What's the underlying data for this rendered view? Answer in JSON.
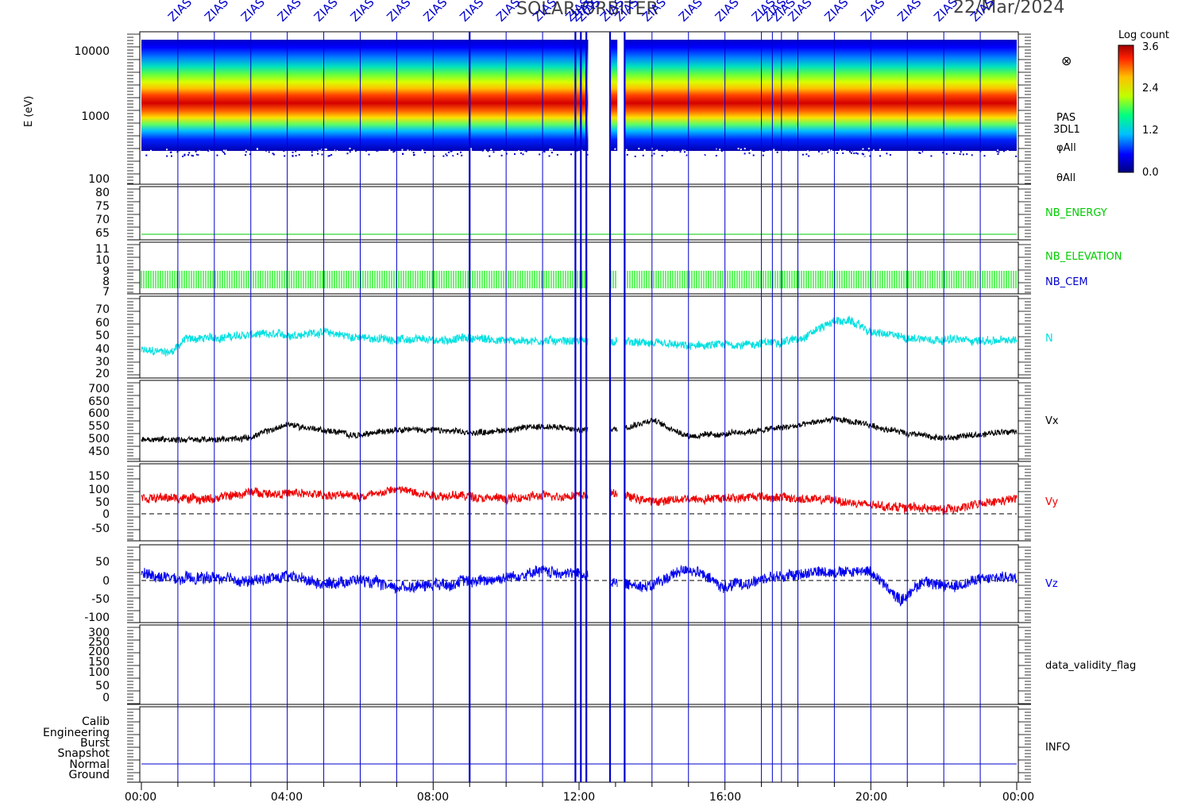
{
  "header": {
    "title": "SOLAR-ORBITER",
    "date": "22/Mar/2024"
  },
  "colorbar": {
    "title": "Log count",
    "ticks": [
      "3.6",
      "2.4",
      "1.2",
      "0.0"
    ],
    "colors": [
      "#000080",
      "#0000ff",
      "#00c0ff",
      "#00ff80",
      "#c0ff00",
      "#ffc000",
      "#ff2000",
      "#a00000"
    ]
  },
  "time_axis": {
    "ticks": [
      "00:00",
      "04:00",
      "08:00",
      "12:00",
      "16:00",
      "20:00",
      "00:00"
    ],
    "hours": [
      0,
      4,
      8,
      12,
      16,
      20,
      24
    ]
  },
  "event_markers": {
    "label": "ZIAS",
    "hours": [
      1.0,
      2.0,
      3.0,
      4.0,
      5.0,
      6.0,
      7.0,
      8.0,
      9.0,
      10.0,
      11.0,
      11.9,
      12.05,
      12.2,
      12.85,
      13.25,
      14.0,
      15.0,
      16.0,
      17.0,
      17.3,
      17.55,
      18.0,
      19.0,
      20.0,
      21.0,
      22.0,
      23.0
    ],
    "bold_hours": [
      9.0,
      11.95,
      12.15,
      12.85,
      13.2
    ],
    "color": "#0000cc"
  },
  "chart_data": [
    {
      "type": "heatmap",
      "name": "energy-spectrogram",
      "ylabel": "E (eV)",
      "yscale": "log",
      "ylim": [
        100,
        16000
      ],
      "yticks": [
        "10000",
        "1000",
        "100"
      ],
      "right_labels": [
        "PAS",
        "3DL1",
        "φAll",
        "θAll"
      ],
      "symbol": "⊗",
      "peak_energy_eV": 1500,
      "gap_hours": [
        [
          12.25,
          12.85
        ],
        [
          13.05,
          13.25
        ]
      ]
    },
    {
      "type": "line",
      "name": "NB_ENERGY",
      "right_label": "NB_ENERGY",
      "color": "#00cc00",
      "yticks": [
        "80",
        "75",
        "70",
        "65"
      ],
      "ylim": [
        60,
        82
      ],
      "constant_value": 63.5
    },
    {
      "type": "line",
      "name": "NB_ELEVATION",
      "right_labels": [
        {
          "text": "NB_ELEVATION",
          "color": "#00cc00"
        },
        {
          "text": "NB_CEM",
          "color": "#0000cc"
        }
      ],
      "color": "#00ee00",
      "yticks": [
        "11",
        "10",
        "9",
        "8",
        "7"
      ],
      "ylim": [
        6.8,
        11.5
      ],
      "range": [
        7.3,
        8.9
      ]
    },
    {
      "type": "line",
      "name": "N",
      "right_label": "N",
      "color": "#00e0e0",
      "yticks": [
        "70",
        "60",
        "50",
        "40",
        "30",
        "20"
      ],
      "ylim": [
        18,
        75
      ],
      "keypoints": [
        [
          0,
          37
        ],
        [
          0.8,
          36
        ],
        [
          1.2,
          45
        ],
        [
          2,
          46
        ],
        [
          3,
          48
        ],
        [
          4,
          48
        ],
        [
          5,
          50
        ],
        [
          6,
          46
        ],
        [
          7,
          45
        ],
        [
          8,
          44
        ],
        [
          9,
          46
        ],
        [
          10,
          44
        ],
        [
          11,
          44
        ],
        [
          12,
          44
        ],
        [
          13,
          43
        ],
        [
          14,
          42
        ],
        [
          15,
          40
        ],
        [
          16,
          41
        ],
        [
          17,
          42
        ],
        [
          18,
          45
        ],
        [
          19,
          58
        ],
        [
          19.5,
          57
        ],
        [
          20,
          50
        ],
        [
          21,
          46
        ],
        [
          22,
          45
        ],
        [
          23,
          44
        ],
        [
          24,
          44
        ]
      ],
      "noise": 5
    },
    {
      "type": "line",
      "name": "Vx",
      "right_label": "Vx",
      "color": "#000000",
      "yticks": [
        "700",
        "650",
        "600",
        "550",
        "500",
        "450"
      ],
      "ylim": [
        430,
        715
      ],
      "keypoints": [
        [
          0,
          510
        ],
        [
          2,
          505
        ],
        [
          3,
          515
        ],
        [
          4,
          560
        ],
        [
          5,
          540
        ],
        [
          6,
          520
        ],
        [
          7,
          545
        ],
        [
          8,
          540
        ],
        [
          9,
          530
        ],
        [
          10,
          540
        ],
        [
          11,
          555
        ],
        [
          12,
          540
        ],
        [
          13,
          545
        ],
        [
          14,
          575
        ],
        [
          15,
          520
        ],
        [
          16,
          525
        ],
        [
          17,
          540
        ],
        [
          18,
          555
        ],
        [
          19,
          580
        ],
        [
          20,
          555
        ],
        [
          21,
          530
        ],
        [
          22,
          510
        ],
        [
          23,
          525
        ],
        [
          24,
          540
        ]
      ],
      "noise": 18
    },
    {
      "type": "line",
      "name": "Vy",
      "right_label": "Vy",
      "color": "#ee0000",
      "yticks": [
        "150",
        "100",
        "50",
        "0",
        "-50"
      ],
      "ylim": [
        -95,
        190
      ],
      "zero_line": true,
      "keypoints": [
        [
          0,
          65
        ],
        [
          2,
          60
        ],
        [
          3,
          85
        ],
        [
          4,
          80
        ],
        [
          5,
          75
        ],
        [
          6,
          70
        ],
        [
          7,
          95
        ],
        [
          8,
          75
        ],
        [
          9,
          70
        ],
        [
          10,
          60
        ],
        [
          11,
          70
        ],
        [
          12,
          75
        ],
        [
          13,
          80
        ],
        [
          14,
          50
        ],
        [
          15,
          60
        ],
        [
          16,
          65
        ],
        [
          17,
          70
        ],
        [
          18,
          60
        ],
        [
          19,
          55
        ],
        [
          20,
          35
        ],
        [
          21,
          30
        ],
        [
          22,
          20
        ],
        [
          23,
          40
        ],
        [
          24,
          60
        ]
      ],
      "noise": 28
    },
    {
      "type": "line",
      "name": "Vz",
      "right_label": "Vz",
      "color": "#0000ee",
      "yticks": [
        "50",
        "0",
        "-50",
        "-100"
      ],
      "ylim": [
        -115,
        75
      ],
      "zero_line": true,
      "keypoints": [
        [
          0,
          5
        ],
        [
          1,
          -10
        ],
        [
          2,
          -5
        ],
        [
          3,
          -15
        ],
        [
          4,
          0
        ],
        [
          5,
          -20
        ],
        [
          6,
          -10
        ],
        [
          7,
          -30
        ],
        [
          8,
          -20
        ],
        [
          9,
          -15
        ],
        [
          10,
          -5
        ],
        [
          11,
          10
        ],
        [
          12,
          5
        ],
        [
          13,
          -20
        ],
        [
          14,
          -25
        ],
        [
          15,
          20
        ],
        [
          16,
          -30
        ],
        [
          17,
          -10
        ],
        [
          18,
          5
        ],
        [
          19,
          10
        ],
        [
          20,
          10
        ],
        [
          20.8,
          -60
        ],
        [
          21.5,
          -10
        ],
        [
          22,
          -30
        ],
        [
          23,
          -10
        ],
        [
          24,
          0
        ]
      ],
      "noise": 24
    },
    {
      "type": "line",
      "name": "data_validity_flag",
      "right_label": "data_validity_flag",
      "yticks": [
        "300",
        "250",
        "200",
        "150",
        "100",
        "50",
        "0"
      ],
      "ylim": [
        -30,
        310
      ]
    },
    {
      "type": "line",
      "name": "INFO",
      "right_label": "INFO",
      "categories": [
        "Calib",
        "Engineering",
        "Burst",
        "Snapshot",
        "Normal",
        "Ground"
      ],
      "mode_line": "Normal"
    }
  ]
}
